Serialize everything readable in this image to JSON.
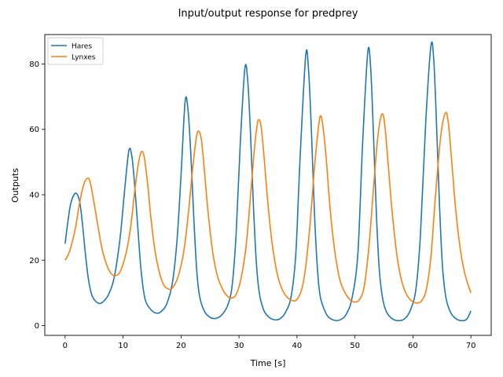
{
  "chart_data": {
    "type": "line",
    "title": "Input/output response for predprey",
    "xlabel": "Time [s]",
    "ylabel": "Outputs",
    "xlim": [
      -3.5,
      73.5
    ],
    "ylim": [
      -3,
      89
    ],
    "xticks": [
      0,
      10,
      20,
      30,
      40,
      50,
      60,
      70
    ],
    "yticks": [
      0,
      20,
      40,
      60,
      80
    ],
    "grid": false,
    "legend": {
      "location": "upper-left"
    },
    "series": [
      {
        "name": "Hares",
        "color": "#1f77b4",
        "points": [
          [
            0,
            25
          ],
          [
            0.5,
            32
          ],
          [
            1,
            37.5
          ],
          [
            1.8,
            40.5
          ],
          [
            2.5,
            38
          ],
          [
            3,
            31
          ],
          [
            3.5,
            22
          ],
          [
            4,
            14.5
          ],
          [
            4.5,
            10
          ],
          [
            5,
            8
          ],
          [
            5.8,
            6.8
          ],
          [
            6.5,
            7.2
          ],
          [
            7.5,
            9.5
          ],
          [
            8.5,
            15
          ],
          [
            9.5,
            27
          ],
          [
            10.3,
            42
          ],
          [
            11,
            53.5
          ],
          [
            11.5,
            52
          ],
          [
            12,
            43
          ],
          [
            12.5,
            31
          ],
          [
            13,
            19
          ],
          [
            13.5,
            11
          ],
          [
            14,
            7
          ],
          [
            15,
            4.5
          ],
          [
            15.8,
            3.8
          ],
          [
            16.5,
            4.2
          ],
          [
            17.5,
            6.5
          ],
          [
            18.5,
            13
          ],
          [
            19.3,
            26
          ],
          [
            20,
            46
          ],
          [
            20.7,
            68.5
          ],
          [
            21.2,
            66
          ],
          [
            21.7,
            52
          ],
          [
            22.2,
            33
          ],
          [
            22.7,
            17
          ],
          [
            23.2,
            9
          ],
          [
            24,
            4.5
          ],
          [
            25,
            2.5
          ],
          [
            26,
            2.2
          ],
          [
            27,
            3.2
          ],
          [
            28,
            6
          ],
          [
            28.8,
            12
          ],
          [
            29.5,
            28
          ],
          [
            30.2,
            55
          ],
          [
            31,
            78.5
          ],
          [
            31.5,
            75
          ],
          [
            32,
            58
          ],
          [
            32.5,
            36
          ],
          [
            33,
            19
          ],
          [
            33.5,
            10
          ],
          [
            34.2,
            5
          ],
          [
            35,
            2.8
          ],
          [
            36,
            1.8
          ],
          [
            37,
            2
          ],
          [
            38,
            4
          ],
          [
            39,
            9
          ],
          [
            39.8,
            22
          ],
          [
            40.5,
            50
          ],
          [
            41.5,
            82.5
          ],
          [
            42,
            78
          ],
          [
            42.5,
            59
          ],
          [
            43,
            35
          ],
          [
            43.5,
            18
          ],
          [
            44,
            9
          ],
          [
            44.8,
            4.5
          ],
          [
            45.5,
            2.5
          ],
          [
            46.5,
            1.6
          ],
          [
            47.5,
            1.8
          ],
          [
            48.5,
            3.5
          ],
          [
            49.5,
            8.5
          ],
          [
            50.5,
            22
          ],
          [
            51.3,
            55
          ],
          [
            52.2,
            83.5
          ],
          [
            52.7,
            79
          ],
          [
            53.2,
            58
          ],
          [
            53.7,
            34
          ],
          [
            54.2,
            17
          ],
          [
            54.8,
            8
          ],
          [
            55.5,
            4
          ],
          [
            56.5,
            2
          ],
          [
            57.5,
            1.5
          ],
          [
            58.5,
            2
          ],
          [
            59.5,
            4.5
          ],
          [
            60.5,
            11
          ],
          [
            61.3,
            28
          ],
          [
            62.2,
            62
          ],
          [
            63.1,
            85.5
          ],
          [
            63.6,
            81
          ],
          [
            64.1,
            60
          ],
          [
            64.6,
            36
          ],
          [
            65.1,
            18
          ],
          [
            65.7,
            8.5
          ],
          [
            66.5,
            4
          ],
          [
            67.5,
            2
          ],
          [
            68.5,
            1.5
          ],
          [
            69.3,
            2
          ],
          [
            70,
            4.5
          ]
        ]
      },
      {
        "name": "Lynxes",
        "color": "#ff7f0e",
        "points": [
          [
            0,
            20
          ],
          [
            0.5,
            21.5
          ],
          [
            1,
            24
          ],
          [
            1.8,
            30
          ],
          [
            2.5,
            37.5
          ],
          [
            3.2,
            43
          ],
          [
            3.8,
            45
          ],
          [
            4.3,
            44
          ],
          [
            5,
            37.5
          ],
          [
            5.8,
            29
          ],
          [
            6.5,
            22.5
          ],
          [
            7.3,
            18
          ],
          [
            8,
            15.8
          ],
          [
            8.7,
            15.3
          ],
          [
            9.5,
            16.5
          ],
          [
            10.5,
            22
          ],
          [
            11.3,
            30
          ],
          [
            12,
            41
          ],
          [
            12.6,
            49
          ],
          [
            13.1,
            53
          ],
          [
            13.6,
            52
          ],
          [
            14.2,
            44
          ],
          [
            14.8,
            33
          ],
          [
            15.5,
            23
          ],
          [
            16.3,
            16
          ],
          [
            17,
            12.5
          ],
          [
            17.8,
            11.2
          ],
          [
            18.5,
            11.5
          ],
          [
            19.5,
            15
          ],
          [
            20.5,
            23
          ],
          [
            21.3,
            35
          ],
          [
            22,
            48
          ],
          [
            22.6,
            57
          ],
          [
            23,
            59.5
          ],
          [
            23.5,
            57
          ],
          [
            24,
            48
          ],
          [
            24.7,
            34
          ],
          [
            25.5,
            22
          ],
          [
            26.3,
            15
          ],
          [
            27.2,
            11
          ],
          [
            28,
            9
          ],
          [
            28.7,
            8.4
          ],
          [
            29.5,
            9.5
          ],
          [
            30.3,
            14
          ],
          [
            31.2,
            24
          ],
          [
            32,
            40
          ],
          [
            32.6,
            53
          ],
          [
            33.1,
            61
          ],
          [
            33.4,
            63
          ],
          [
            33.8,
            61
          ],
          [
            34.3,
            52
          ],
          [
            35,
            37
          ],
          [
            35.8,
            24
          ],
          [
            36.7,
            15
          ],
          [
            37.6,
            10.5
          ],
          [
            38.5,
            8.3
          ],
          [
            39.3,
            7.6
          ],
          [
            40,
            8
          ],
          [
            40.8,
            11
          ],
          [
            41.5,
            18
          ],
          [
            42.3,
            32
          ],
          [
            43,
            48
          ],
          [
            43.6,
            59
          ],
          [
            44,
            64
          ],
          [
            44.4,
            62
          ],
          [
            45,
            52
          ],
          [
            45.7,
            36
          ],
          [
            46.5,
            23
          ],
          [
            47.4,
            14
          ],
          [
            48.3,
            10
          ],
          [
            49.2,
            7.8
          ],
          [
            50,
            7.2
          ],
          [
            50.8,
            8
          ],
          [
            51.6,
            12
          ],
          [
            52.4,
            24
          ],
          [
            53.2,
            42
          ],
          [
            53.9,
            57
          ],
          [
            54.6,
            64.5
          ],
          [
            55.1,
            62
          ],
          [
            55.7,
            50
          ],
          [
            56.4,
            35
          ],
          [
            57.2,
            22
          ],
          [
            58,
            14
          ],
          [
            58.9,
            9.5
          ],
          [
            59.8,
            7.5
          ],
          [
            60.7,
            6.9
          ],
          [
            61.5,
            7.6
          ],
          [
            62.3,
            11
          ],
          [
            63.1,
            21
          ],
          [
            63.9,
            40
          ],
          [
            64.8,
            58
          ],
          [
            65.6,
            65
          ],
          [
            66.1,
            62
          ],
          [
            66.7,
            50
          ],
          [
            67.4,
            35
          ],
          [
            68.2,
            23
          ],
          [
            69,
            15.5
          ],
          [
            70,
            10
          ]
        ]
      }
    ]
  }
}
